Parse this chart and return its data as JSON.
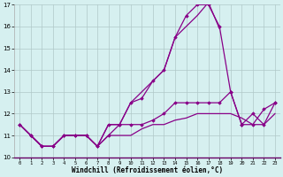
{
  "xlabel": "Windchill (Refroidissement éolien,°C)",
  "bg_color": "#d6f0f0",
  "grid_color": "#b0c8c8",
  "line_color": "#880088",
  "xlim": [
    -0.5,
    23.5
  ],
  "ylim": [
    10,
    17
  ],
  "xticks": [
    0,
    1,
    2,
    3,
    4,
    5,
    6,
    7,
    8,
    9,
    10,
    11,
    12,
    13,
    14,
    15,
    16,
    17,
    18,
    19,
    20,
    21,
    22,
    23
  ],
  "yticks": [
    10,
    11,
    12,
    13,
    14,
    15,
    16,
    17
  ],
  "series": [
    {
      "x": [
        0,
        1,
        2,
        3,
        4,
        5,
        6,
        7,
        8,
        9,
        10,
        11,
        12,
        13,
        14,
        15,
        16,
        17,
        18,
        19,
        20,
        21,
        22,
        23
      ],
      "y": [
        11.5,
        11.0,
        10.5,
        10.5,
        11.0,
        11.0,
        11.0,
        10.5,
        11.5,
        11.5,
        12.5,
        12.7,
        13.5,
        14.0,
        15.5,
        16.5,
        17.0,
        17.0,
        16.0,
        13.0,
        11.5,
        12.0,
        11.5,
        12.5
      ],
      "marker": true,
      "lw": 0.9
    },
    {
      "x": [
        0,
        1,
        2,
        3,
        4,
        5,
        6,
        7,
        8,
        9,
        10,
        11,
        12,
        13,
        14,
        15,
        16,
        17,
        18
      ],
      "y": [
        11.5,
        11.0,
        10.5,
        10.5,
        11.0,
        11.0,
        11.0,
        10.5,
        11.5,
        11.5,
        12.5,
        13.0,
        13.5,
        14.0,
        15.5,
        16.0,
        16.5,
        17.1,
        15.9
      ],
      "marker": false,
      "lw": 0.9
    },
    {
      "x": [
        0,
        1,
        2,
        3,
        4,
        5,
        6,
        7,
        8,
        9,
        10,
        11,
        12,
        13,
        14,
        15,
        16,
        17,
        18,
        19,
        20,
        21,
        22,
        23
      ],
      "y": [
        11.5,
        11.0,
        10.5,
        10.5,
        11.0,
        11.0,
        11.0,
        10.5,
        11.0,
        11.5,
        11.5,
        11.5,
        11.7,
        12.0,
        12.5,
        12.5,
        12.5,
        12.5,
        12.5,
        13.0,
        11.5,
        11.5,
        12.2,
        12.5
      ],
      "marker": true,
      "lw": 0.9
    },
    {
      "x": [
        0,
        1,
        2,
        3,
        4,
        5,
        6,
        7,
        8,
        9,
        10,
        11,
        12,
        13,
        14,
        15,
        16,
        17,
        18,
        19,
        20,
        21,
        22,
        23
      ],
      "y": [
        11.5,
        11.0,
        10.5,
        10.5,
        11.0,
        11.0,
        11.0,
        10.5,
        11.0,
        11.0,
        11.0,
        11.3,
        11.5,
        11.5,
        11.7,
        11.8,
        12.0,
        12.0,
        12.0,
        12.0,
        11.8,
        11.5,
        11.5,
        12.0
      ],
      "marker": false,
      "lw": 0.9
    }
  ]
}
